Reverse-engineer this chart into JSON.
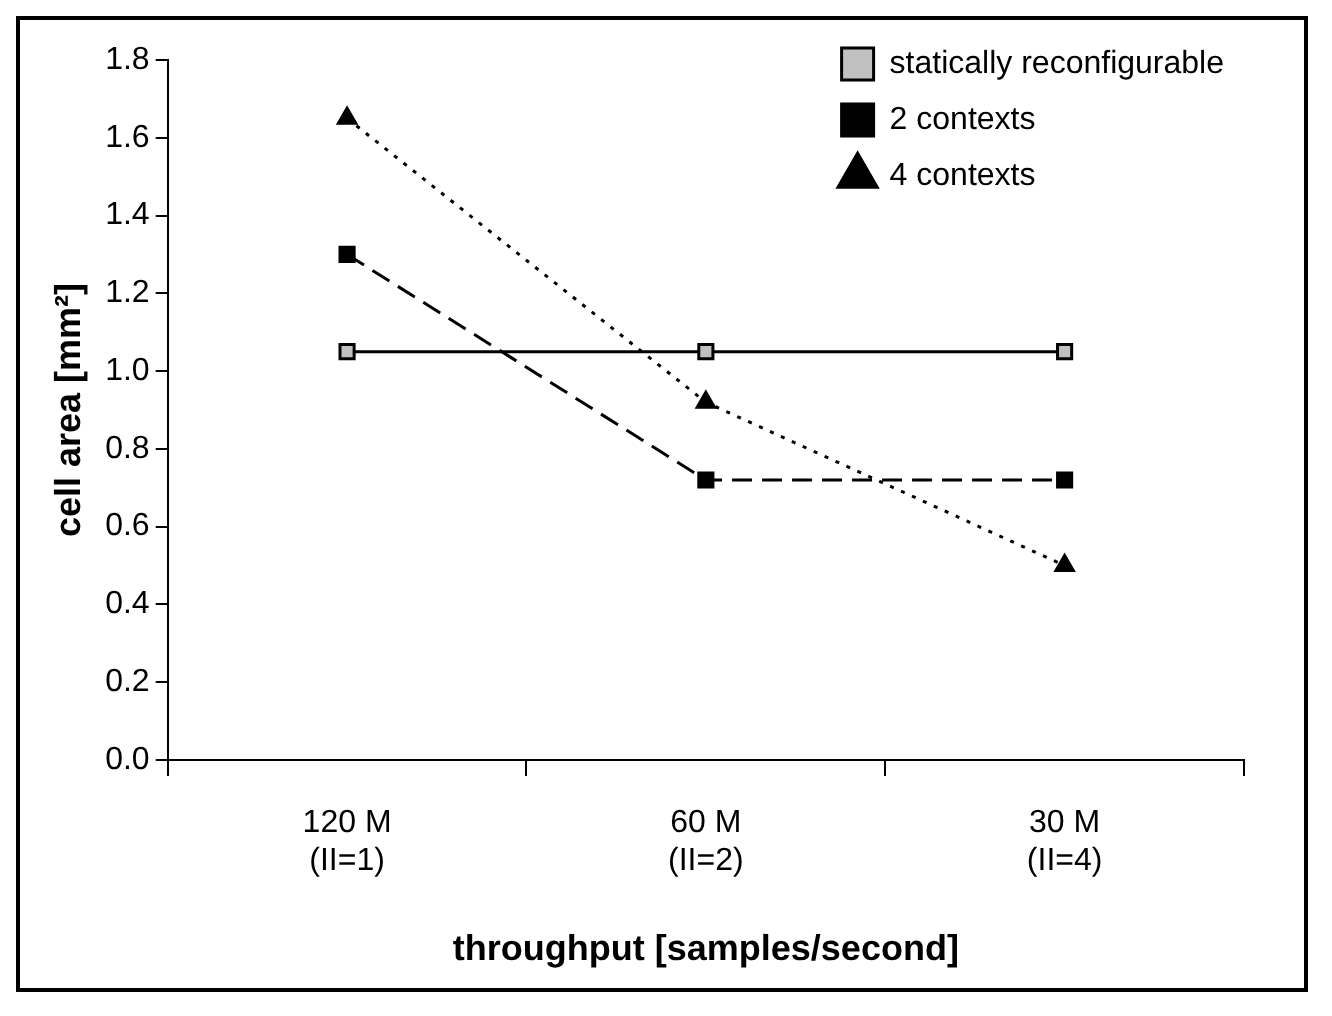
{
  "chart_data": {
    "type": "line",
    "xlabel": "throughput [samples/second]",
    "ylabel": "cell area [mm²]",
    "categories": [
      "120 M\n(II=1)",
      "60 M\n(II=2)",
      "30 M\n(II=4)"
    ],
    "series": [
      {
        "name": "statically reconfigurable",
        "color": "#c0c0c0",
        "marker": "square",
        "line_style": "solid",
        "values": [
          1.05,
          1.05,
          1.05
        ]
      },
      {
        "name": "2 contexts",
        "color": "#000000",
        "marker": "square",
        "line_style": "dashed",
        "values": [
          1.3,
          0.72,
          0.72
        ]
      },
      {
        "name": "4 contexts",
        "color": "#000000",
        "marker": "triangle",
        "line_style": "dotted",
        "values": [
          1.65,
          0.92,
          0.5
        ]
      }
    ],
    "ylim": [
      0,
      1.8
    ],
    "yticks": [
      {
        "value": 0,
        "label": "0.0"
      },
      {
        "value": 0.2,
        "label": "0.2"
      },
      {
        "value": 0.4,
        "label": "0.4"
      },
      {
        "value": 0.6,
        "label": "0.6"
      },
      {
        "value": 0.8,
        "label": "0.8"
      },
      {
        "value": 1,
        "label": "1.0"
      },
      {
        "value": 1.2,
        "label": "1.2"
      },
      {
        "value": 1.4,
        "label": "1.4"
      },
      {
        "value": 1.6,
        "label": "1.6"
      },
      {
        "value": 1.8,
        "label": "1.8"
      }
    ],
    "grid": false,
    "legend": "top right"
  }
}
